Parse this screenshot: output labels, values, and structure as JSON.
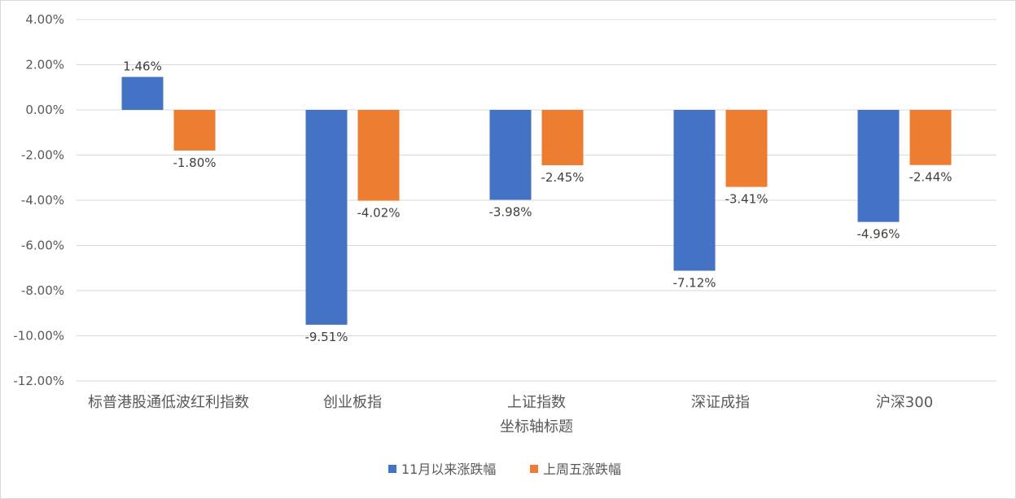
{
  "chart_data": {
    "type": "bar",
    "xlabel": "坐标轴标题",
    "ylabel": "",
    "ylim": [
      -12,
      4
    ],
    "ytick_step": 2,
    "ytick_labels": [
      "4.00%",
      "2.00%",
      "0.00%",
      "-2.00%",
      "-4.00%",
      "-6.00%",
      "-8.00%",
      "-10.00%",
      "-12.00%"
    ],
    "grid": true,
    "legend_position": "bottom",
    "categories": [
      "标普港股通低波红利指数",
      "创业板指",
      "上证指数",
      "深证成指",
      "沪深300"
    ],
    "series": [
      {
        "name": "11月以来涨跌幅",
        "color": "#4472C4",
        "values": [
          1.46,
          -9.51,
          -3.98,
          -7.12,
          -4.96
        ],
        "labels": [
          "1.46%",
          "-9.51%",
          "-3.98%",
          "-7.12%",
          "-4.96%"
        ]
      },
      {
        "name": "上周五涨跌幅",
        "color": "#ED7D31",
        "values": [
          -1.8,
          -4.02,
          -2.45,
          -3.41,
          -2.44
        ],
        "labels": [
          "-1.80%",
          "-4.02%",
          "-2.45%",
          "-3.41%",
          "-2.44%"
        ]
      }
    ]
  }
}
